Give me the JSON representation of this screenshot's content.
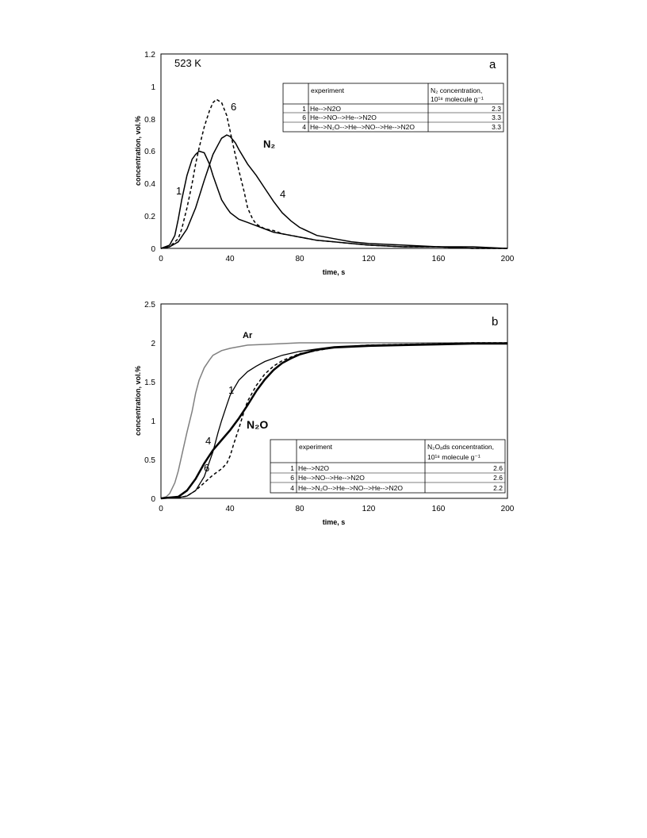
{
  "chart_data": [
    {
      "type": "line",
      "panel_letter": "a",
      "temperature_label": "523 K",
      "species_label": "N₂",
      "xlabel": "time, s",
      "ylabel": "concentration, vol.%",
      "xlim": [
        0,
        200
      ],
      "ylim": [
        0,
        1.2
      ],
      "x_ticks": [
        "0",
        "40",
        "80",
        "120",
        "160",
        "200"
      ],
      "y_ticks": [
        "0",
        "0.2",
        "0.4",
        "0.6",
        "0.8",
        "1",
        "1.2"
      ],
      "grid": false,
      "series": [
        {
          "label": "1",
          "style": "solid",
          "color": "#000000",
          "x": [
            0,
            5,
            8,
            10,
            12,
            15,
            18,
            20,
            22,
            25,
            28,
            30,
            33,
            35,
            38,
            40,
            45,
            50,
            55,
            60,
            65,
            70,
            75,
            80,
            90,
            100,
            110,
            120,
            140,
            160,
            180,
            200
          ],
          "y": [
            0,
            0.02,
            0.08,
            0.18,
            0.3,
            0.45,
            0.55,
            0.58,
            0.6,
            0.59,
            0.52,
            0.45,
            0.36,
            0.3,
            0.25,
            0.22,
            0.18,
            0.16,
            0.14,
            0.12,
            0.1,
            0.09,
            0.08,
            0.07,
            0.05,
            0.04,
            0.03,
            0.02,
            0.01,
            0.01,
            0,
            0
          ]
        },
        {
          "label": "6",
          "style": "dashed",
          "color": "#000000",
          "x": [
            0,
            5,
            10,
            12,
            15,
            18,
            20,
            22,
            25,
            28,
            30,
            32,
            35,
            38,
            40,
            42,
            45,
            48,
            50,
            53,
            55,
            60,
            65,
            70,
            80,
            90,
            100,
            120,
            140,
            160,
            180,
            200
          ],
          "y": [
            0,
            0.01,
            0.06,
            0.12,
            0.25,
            0.4,
            0.52,
            0.62,
            0.75,
            0.85,
            0.9,
            0.92,
            0.9,
            0.82,
            0.72,
            0.62,
            0.48,
            0.35,
            0.25,
            0.18,
            0.15,
            0.12,
            0.11,
            0.09,
            0.07,
            0.05,
            0.04,
            0.02,
            0.01,
            0.01,
            0,
            0
          ]
        },
        {
          "label": "4",
          "style": "solid",
          "color": "#000000",
          "x": [
            0,
            5,
            10,
            15,
            20,
            25,
            30,
            33,
            35,
            38,
            40,
            43,
            45,
            50,
            55,
            60,
            65,
            70,
            75,
            80,
            90,
            100,
            110,
            120,
            140,
            160,
            180,
            200
          ],
          "y": [
            0,
            0.01,
            0.04,
            0.12,
            0.25,
            0.42,
            0.58,
            0.64,
            0.68,
            0.7,
            0.69,
            0.65,
            0.61,
            0.52,
            0.45,
            0.37,
            0.29,
            0.22,
            0.17,
            0.13,
            0.08,
            0.06,
            0.04,
            0.03,
            0.02,
            0.01,
            0.01,
            0
          ]
        }
      ],
      "series_labels": [
        "1",
        "6",
        "4"
      ],
      "table": {
        "headers": [
          "",
          "experiment",
          "N₂ concentration,",
          "10¹⁸ molecule g⁻¹"
        ],
        "rows": [
          {
            "id": "1",
            "experiment": "He-->N2O",
            "value": "2.3"
          },
          {
            "id": "6",
            "experiment": "He-->NO-->He-->N2O",
            "value": "3.3"
          },
          {
            "id": "4",
            "experiment": "He-->N₂O-->He-->NO-->He-->N2O",
            "value": "3.3"
          }
        ]
      }
    },
    {
      "type": "line",
      "panel_letter": "b",
      "species_label": "N₂O",
      "xlabel": "time, s",
      "ylabel": "concentration, vol.%",
      "xlim": [
        0,
        200
      ],
      "ylim": [
        0,
        2.5
      ],
      "x_ticks": [
        "0",
        "40",
        "80",
        "120",
        "160",
        "200"
      ],
      "y_ticks": [
        "0",
        "0.5",
        "1",
        "1.5",
        "2",
        "2.5"
      ],
      "grid": false,
      "series": [
        {
          "label": "Ar",
          "style": "solid",
          "color": "#808080",
          "x": [
            0,
            3,
            5,
            8,
            10,
            12,
            15,
            18,
            20,
            22,
            25,
            28,
            30,
            35,
            40,
            45,
            50,
            60,
            70,
            80,
            90,
            100,
            120,
            140,
            160,
            180,
            200
          ],
          "y": [
            0,
            0.02,
            0.06,
            0.2,
            0.35,
            0.55,
            0.85,
            1.12,
            1.35,
            1.52,
            1.68,
            1.78,
            1.84,
            1.9,
            1.93,
            1.95,
            1.97,
            1.98,
            1.99,
            2.0,
            2.0,
            2.0,
            2.0,
            2.0,
            2.0,
            2.0,
            2.0
          ]
        },
        {
          "label": "1",
          "style": "solid",
          "color": "#000000",
          "x": [
            0,
            10,
            15,
            20,
            25,
            30,
            33,
            35,
            38,
            40,
            45,
            50,
            55,
            60,
            70,
            80,
            90,
            100,
            120,
            140,
            160,
            180,
            200
          ],
          "y": [
            0,
            0.01,
            0.03,
            0.1,
            0.28,
            0.6,
            0.85,
            1.0,
            1.2,
            1.33,
            1.52,
            1.63,
            1.7,
            1.76,
            1.84,
            1.89,
            1.92,
            1.95,
            1.97,
            1.98,
            1.99,
            2.0,
            2.0
          ]
        },
        {
          "label": "6",
          "style": "dashed",
          "color": "#000000",
          "x": [
            0,
            10,
            15,
            20,
            25,
            30,
            35,
            38,
            40,
            42,
            45,
            48,
            50,
            55,
            60,
            65,
            70,
            80,
            90,
            100,
            120,
            140,
            160,
            180,
            200
          ],
          "y": [
            0,
            0.01,
            0.03,
            0.1,
            0.2,
            0.3,
            0.38,
            0.45,
            0.55,
            0.7,
            0.9,
            1.12,
            1.25,
            1.45,
            1.6,
            1.7,
            1.77,
            1.86,
            1.9,
            1.94,
            1.97,
            1.98,
            1.99,
            2.0,
            2.0
          ]
        },
        {
          "label": "4",
          "style": "solid-thick",
          "color": "#000000",
          "x": [
            0,
            10,
            15,
            20,
            25,
            30,
            35,
            40,
            45,
            50,
            55,
            60,
            65,
            70,
            75,
            80,
            90,
            100,
            120,
            140,
            160,
            180,
            200
          ],
          "y": [
            0,
            0.02,
            0.1,
            0.25,
            0.45,
            0.62,
            0.75,
            0.88,
            1.03,
            1.2,
            1.38,
            1.53,
            1.65,
            1.74,
            1.8,
            1.85,
            1.91,
            1.94,
            1.96,
            1.97,
            1.98,
            1.99,
            1.99
          ]
        }
      ],
      "series_labels": [
        "Ar",
        "1",
        "4",
        "6"
      ],
      "table": {
        "headers": [
          "",
          "experiment",
          "N₂Oₐds concentration,",
          "10¹⁸ molecule g⁻¹"
        ],
        "rows": [
          {
            "id": "1",
            "experiment": "He-->N2O",
            "value": "2.6"
          },
          {
            "id": "6",
            "experiment": "He-->NO-->He-->N2O",
            "value": "2.6"
          },
          {
            "id": "4",
            "experiment": "He-->N₂O-->He-->NO-->He-->N2O",
            "value": "2.2"
          }
        ]
      }
    }
  ]
}
